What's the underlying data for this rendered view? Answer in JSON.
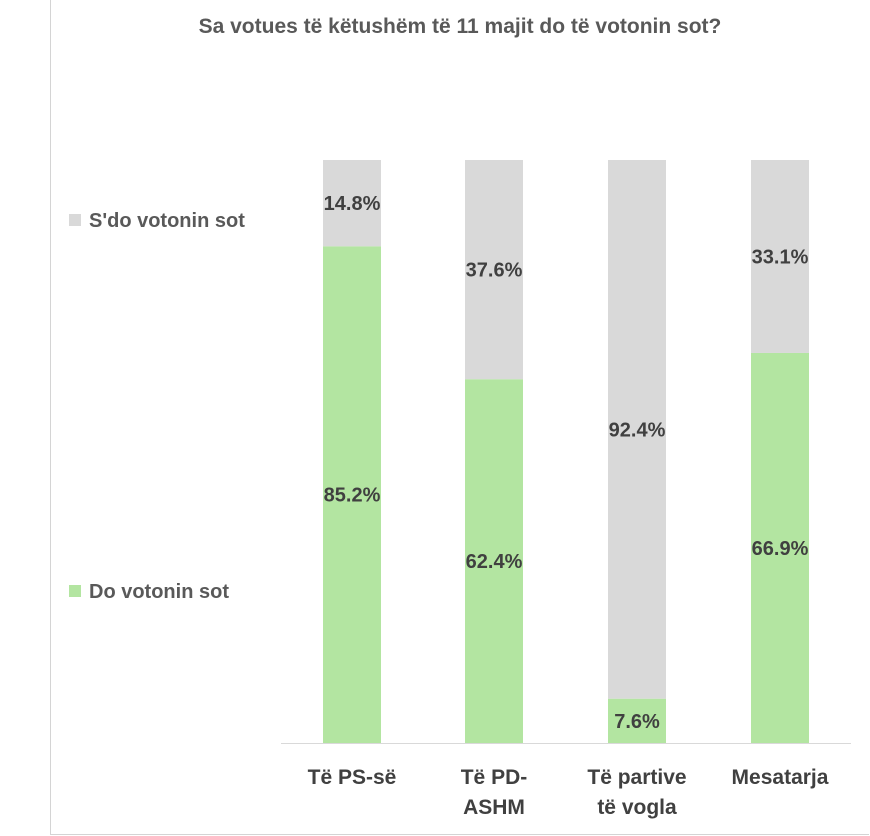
{
  "chart_data": {
    "type": "bar",
    "stacked": true,
    "title": "Sa votues të këtushëm të 11 majit do të votonin sot?",
    "categories": [
      [
        "Të PS-së"
      ],
      [
        "Të PD-",
        "ASHM"
      ],
      [
        "Të partive",
        "të vogla"
      ],
      [
        "Mesatarja"
      ]
    ],
    "series": [
      {
        "name": "Do votonin sot",
        "values": [
          85.2,
          62.4,
          7.6,
          66.9
        ],
        "labels": [
          "85.2%",
          "62.4%",
          "7.6%",
          "66.9%"
        ],
        "color": "#b3e5a1"
      },
      {
        "name": "S'do votonin sot",
        "values": [
          14.8,
          37.6,
          92.4,
          33.1
        ],
        "labels": [
          "14.8%",
          "37.6%",
          "92.4%",
          "33.1%"
        ],
        "color": "#d9d9d9"
      }
    ],
    "ylim": [
      0,
      100
    ],
    "grid": false,
    "legend_position": "left",
    "axis_color": "#d9d9d9"
  }
}
